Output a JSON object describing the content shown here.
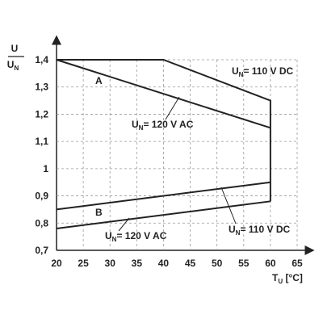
{
  "chart_data": {
    "type": "line",
    "ylabel": {
      "numerator": "U",
      "denominator": "U",
      "denominator_sub": "N"
    },
    "xlabel": {
      "main": "T",
      "sub": "U",
      "rest": " [°C]"
    },
    "xlim": [
      20,
      65
    ],
    "xticks": [
      20,
      25,
      30,
      35,
      40,
      45,
      50,
      55,
      60,
      65
    ],
    "ylim": [
      0.7,
      1.4
    ],
    "yticks": [
      {
        "value": 0.7,
        "label": "0,7"
      },
      {
        "value": 0.8,
        "label": "0,8"
      },
      {
        "value": 0.9,
        "label": "0,9"
      },
      1,
      {
        "value": 1.1,
        "label": "1,1"
      },
      {
        "value": 1.2,
        "label": "1,2"
      },
      {
        "value": 1.3,
        "label": "1,3"
      },
      {
        "value": 1.4,
        "label": "1,4"
      }
    ],
    "grid": true,
    "color": "#222222",
    "series": [
      {
        "label": [
          "U",
          "N",
          "= 110 V DC"
        ],
        "x": [
          20,
          40,
          60,
          60
        ],
        "values": [
          1.4,
          1.4,
          1.25,
          0.88
        ]
      },
      {
        "label": [
          "U",
          "N",
          "= 120 V AC"
        ],
        "x": [
          20,
          60
        ],
        "values": [
          1.4,
          1.15
        ]
      },
      {
        "label": [
          "U",
          "N",
          "= 110 V DC"
        ],
        "x": [
          20,
          60
        ],
        "values": [
          0.85,
          0.95
        ]
      },
      {
        "label": [
          "U",
          "N",
          "= 120 V AC"
        ],
        "x": [
          20,
          60
        ],
        "values": [
          0.78,
          0.88
        ]
      }
    ],
    "regions": [
      "A",
      "B"
    ]
  }
}
